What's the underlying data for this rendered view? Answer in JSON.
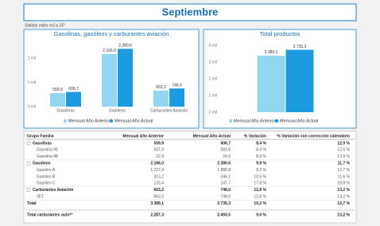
{
  "header": {
    "title": "Septiembre",
    "subtitle": "Salidas miles m3 a 15°"
  },
  "chart_data": [
    {
      "type": "bar",
      "title": "Gasolinas, gasóleos y carburantes aviación",
      "categories": [
        "Gasolinas",
        "Gasóleos",
        "Carburantes Aviación"
      ],
      "series": [
        {
          "name": "Mensual Año Anterior",
          "color": "#93d6f2",
          "values": [
            559.9,
            2166.0,
            663.2
          ],
          "value_labels": [
            "559,9",
            "2.166,0",
            "663,2"
          ]
        },
        {
          "name": "Mensual Año Actual",
          "color": "#1c9be0",
          "values": [
            606.7,
            2380.6,
            748.0
          ],
          "value_labels": [
            "606,7",
            "2.380,6",
            "748,0"
          ]
        }
      ],
      "ylim": [
        0,
        2700
      ],
      "yticks": [
        {
          "value": 0,
          "label": "0 mil"
        },
        {
          "value": 1000,
          "label": "1 mil"
        },
        {
          "value": 2000,
          "label": "2 mil"
        }
      ]
    },
    {
      "type": "bar",
      "title": "Total productos",
      "categories": [
        null
      ],
      "series": [
        {
          "name": "Mensual Año Anterior",
          "color": "#93d6f2",
          "values": [
            3389.1
          ],
          "value_labels": [
            "3.389,1"
          ]
        },
        {
          "name": "Mensual Año Actual",
          "color": "#1c9be0",
          "values": [
            3735.3
          ],
          "value_labels": [
            "3.735,3"
          ]
        }
      ],
      "ylim": [
        0,
        4300
      ],
      "yticks": [
        {
          "value": 0,
          "label": "0 mil"
        },
        {
          "value": 1000,
          "label": "1 mil"
        },
        {
          "value": 2000,
          "label": "2 mil"
        },
        {
          "value": 3000,
          "label": "3 mil"
        },
        {
          "value": 4000,
          "label": "4 mil"
        }
      ]
    }
  ],
  "table": {
    "columns": [
      "Grupo Familia",
      "Mensual Año Anterior",
      "Mensual Año Actual",
      "% Variación",
      "% Variación con corrección calendario"
    ],
    "rows": [
      [
        "Gasolinas",
        "559,9",
        "606,7",
        "8,4 %",
        "12,9 %"
      ],
      [
        "Gasolina 95",
        "537,0",
        "581,8",
        "8,4 %",
        "12,5 %"
      ],
      [
        "Gasolina 98",
        "22,9",
        "24,9",
        "8,9 %",
        "13,9 %"
      ],
      [
        "Gasóleos",
        "2.166,0",
        "2.380,6",
        "9,9 %",
        "11,7 %"
      ],
      [
        "Gasóleo A",
        "1.727,4",
        "1.886,8",
        "9,2 %",
        "12,7 %"
      ],
      [
        "Gasóleo B",
        "313,2",
        "346,1",
        "10,5 %",
        "11,6 %"
      ],
      [
        "Gasóleo C",
        "125,4",
        "147,7",
        "17,8 %",
        "18,8 %"
      ],
      [
        "Carburantes Aviación",
        "663,2",
        "748,0",
        "12,8 %",
        "13,2 %"
      ],
      [
        "JET",
        "663,2",
        "748,0",
        "12,8 %",
        "13,2 %"
      ],
      [
        "Total",
        "3.389,1",
        "3.735,3",
        "10,2 %",
        "12,7 %"
      ]
    ],
    "footer": [
      "Total carburantes auto**",
      "2.287,3",
      "2.493,5",
      "9,0 %",
      "13,2 %"
    ]
  }
}
